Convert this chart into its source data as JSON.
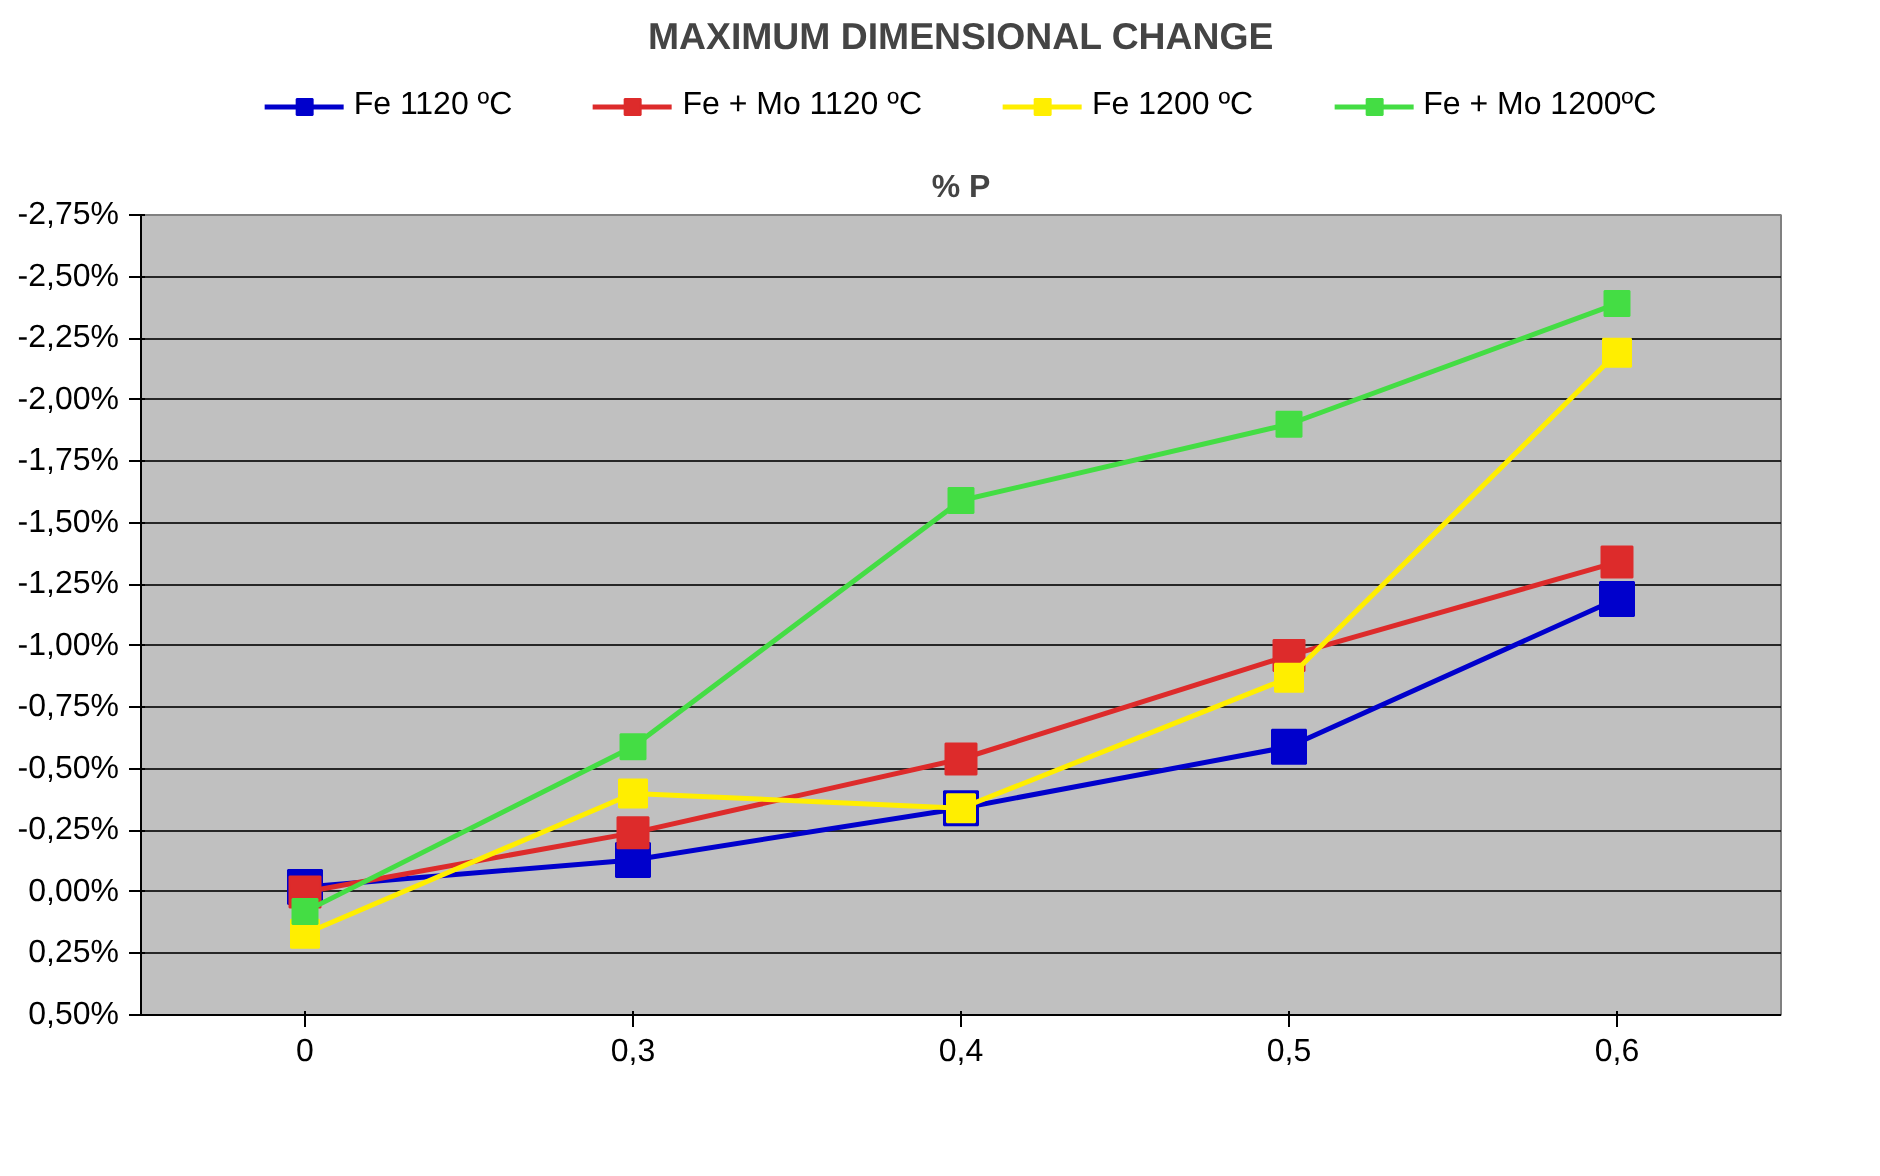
{
  "chart_data": {
    "type": "line",
    "title": "MAXIMUM DIMENSIONAL CHANGE",
    "xlabel": "% P",
    "categories": [
      "0",
      "0,3",
      "0,4",
      "0,5",
      "0,6"
    ],
    "series": [
      {
        "name": "Fe 1120 ºC",
        "color": "#0000cc",
        "values": [
          -0.02,
          -0.13,
          -0.34,
          -0.59,
          -1.19
        ]
      },
      {
        "name": "Fe + Mo 1120 ºC",
        "color": "#dd2b2b",
        "values": [
          0.0,
          -0.24,
          -0.54,
          -0.96,
          -1.34
        ]
      },
      {
        "name": "Fe 1200 ºC",
        "color": "#ffee00",
        "values": [
          0.17,
          -0.4,
          -0.34,
          -0.87,
          -2.19
        ]
      },
      {
        "name": "Fe + Mo 1200ºC",
        "color": "#44dd44",
        "values": [
          0.08,
          -0.59,
          -1.59,
          -1.9,
          -2.39
        ]
      }
    ],
    "ylim": [
      0.5,
      -2.75
    ],
    "yticks": [
      {
        "value": -2.75,
        "label": "-2,75%"
      },
      {
        "value": -2.5,
        "label": "-2,50%"
      },
      {
        "value": -2.25,
        "label": "-2,25%"
      },
      {
        "value": -2.0,
        "label": "-2,00%"
      },
      {
        "value": -1.75,
        "label": "-1,75%"
      },
      {
        "value": -1.5,
        "label": "-1,50%"
      },
      {
        "value": -1.25,
        "label": "-1,25%"
      },
      {
        "value": -1.0,
        "label": "-1,00%"
      },
      {
        "value": -0.75,
        "label": "-0,75%"
      },
      {
        "value": -0.5,
        "label": "-0,50%"
      },
      {
        "value": -0.25,
        "label": "-0,25%"
      },
      {
        "value": 0,
        "label": "0,00%"
      },
      {
        "value": 0.25,
        "label": "0,25%"
      },
      {
        "value": 0.5,
        "label": "0,50%"
      }
    ],
    "grid": "y",
    "legend": "top",
    "marker": "square",
    "line_style": "solid"
  }
}
